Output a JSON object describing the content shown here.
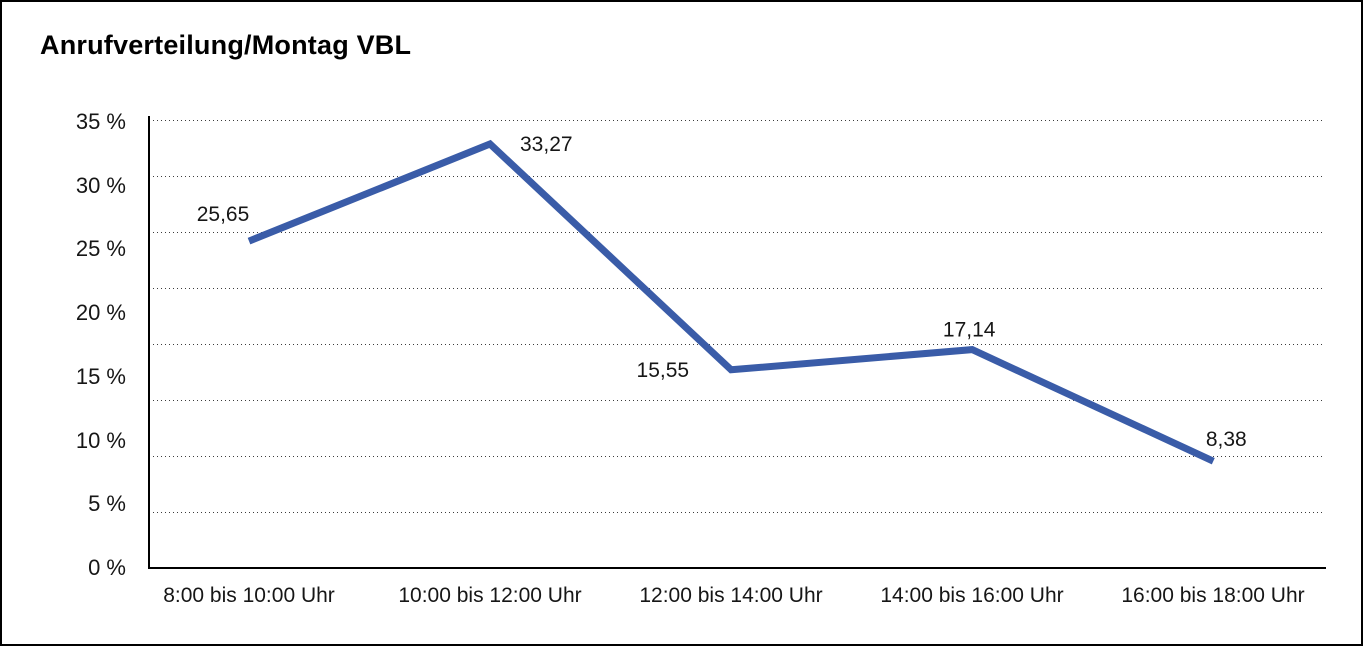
{
  "chart_title": "Anrufverteilung/Montag VBL",
  "chart_data": {
    "type": "line",
    "title": "Anrufverteilung/Montag VBL",
    "categories": [
      "8:00 bis 10:00 Uhr",
      "10:00 bis 12:00 Uhr",
      "12:00 bis 14:00 Uhr",
      "14:00 bis 16:00 Uhr",
      "16:00 bis 18:00 Uhr"
    ],
    "values": [
      25.65,
      33.27,
      15.55,
      17.14,
      8.38
    ],
    "point_labels": [
      "25,65",
      "33,27",
      "15,55",
      "17,14",
      "8,38"
    ],
    "y_tick_labels": [
      "35 %",
      "30 %",
      "25 %",
      "20 %",
      "15 %",
      "10 %",
      "5 %",
      "0 %"
    ],
    "ylim": [
      0,
      35
    ],
    "xlabel": "",
    "ylabel": "",
    "legend": "none",
    "grid": "horizontal dotted",
    "line_color": "#3A5CA8",
    "axis_color": "#000000",
    "text_color": "#161616"
  }
}
